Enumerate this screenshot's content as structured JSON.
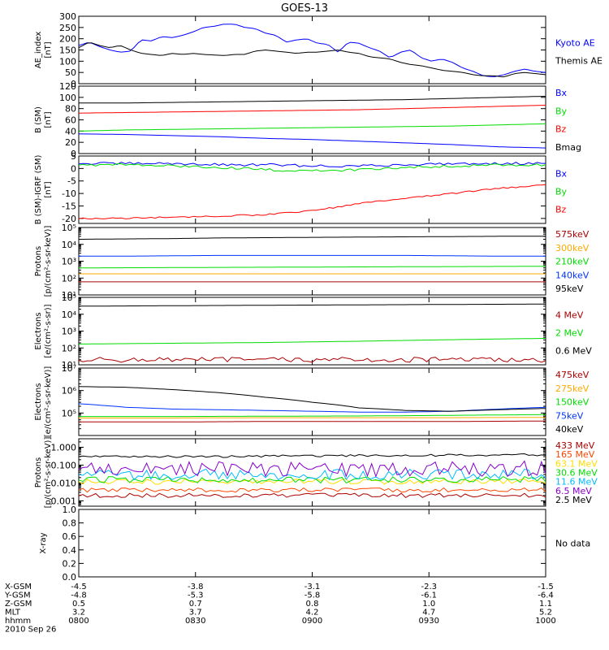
{
  "title": "GOES-13",
  "colors": {
    "black": "#000000",
    "blue": "#0000ff",
    "red": "#ff0000",
    "green": "#00dd00",
    "darkred": "#aa0000",
    "orange": "#ffaa00",
    "medblue": "#0033ff",
    "gold": "#ffdd00",
    "cyan": "#00bbff",
    "purple": "#8800cc",
    "orangered": "#ff4400"
  },
  "chart_data": [
    {
      "type": "line",
      "id": "ae",
      "ylabel": "AE_index\n[nT]",
      "ylim": [
        0,
        300
      ],
      "yscale": "linear",
      "yticks": [
        0,
        50,
        100,
        150,
        200,
        250,
        300
      ],
      "ytick_labels": [
        "0",
        "50",
        "100",
        "150",
        "200",
        "250",
        "300"
      ],
      "series": [
        {
          "name": "Kyoto AE",
          "color": "blue",
          "values": [
            170,
            185,
            165,
            150,
            140,
            145,
            195,
            190,
            210,
            205,
            215,
            230,
            250,
            255,
            265,
            265,
            250,
            245,
            225,
            215,
            185,
            195,
            200,
            180,
            175,
            140,
            185,
            180,
            160,
            145,
            115,
            140,
            150,
            115,
            100,
            110,
            95,
            70,
            55,
            35,
            30,
            40,
            55,
            65,
            55,
            50
          ],
          "noise": 0
        },
        {
          "name": "Themis AE",
          "color": "black",
          "values": [
            160,
            185,
            170,
            160,
            170,
            150,
            135,
            130,
            125,
            135,
            130,
            135,
            130,
            128,
            125,
            130,
            130,
            145,
            150,
            145,
            140,
            135,
            140,
            140,
            145,
            150,
            140,
            135,
            120,
            115,
            110,
            95,
            85,
            80,
            70,
            60,
            55,
            50,
            40,
            35,
            35,
            30,
            45,
            50,
            45,
            40
          ],
          "noise": 0
        }
      ]
    },
    {
      "type": "line",
      "id": "bsm",
      "ylabel": "B (SM)\n[nT]",
      "ylim": [
        0,
        120
      ],
      "yscale": "linear",
      "yticks": [
        0,
        20,
        40,
        60,
        80,
        100,
        120
      ],
      "ytick_labels": [
        "0",
        "20",
        "40",
        "60",
        "80",
        "100",
        "120"
      ],
      "series": [
        {
          "name": "Bx",
          "color": "blue",
          "values": [
            35,
            34,
            32,
            30,
            27,
            25,
            22,
            19,
            16,
            12,
            10
          ],
          "noise": 0
        },
        {
          "name": "By",
          "color": "green",
          "values": [
            40,
            42,
            43,
            44,
            45,
            46,
            47,
            48,
            49,
            51,
            53
          ],
          "noise": 0
        },
        {
          "name": "Bz",
          "color": "red",
          "values": [
            72,
            73,
            74,
            75,
            76,
            77,
            78,
            80,
            82,
            84,
            86
          ],
          "noise": 0
        },
        {
          "name": "Bmag",
          "color": "black",
          "values": [
            90,
            90,
            91,
            92,
            93,
            94,
            95,
            96,
            98,
            100,
            102
          ],
          "noise": 0
        }
      ]
    },
    {
      "type": "line",
      "id": "bigrf",
      "ylabel": "B (SM)-IGRF (SM)\n[nT]",
      "ylim": [
        -22,
        5
      ],
      "yscale": "linear",
      "yticks": [
        -20,
        -15,
        -10,
        -5,
        0,
        5
      ],
      "ytick_labels": [
        "-20",
        "-15",
        "-10",
        "-5",
        "0",
        "5"
      ],
      "series": [
        {
          "name": "Bx",
          "color": "blue",
          "values": [
            2,
            2,
            2,
            1.5,
            1.5,
            1,
            1,
            1.5,
            2,
            2,
            2
          ],
          "noise": 0.5
        },
        {
          "name": "By",
          "color": "green",
          "values": [
            1.5,
            1.5,
            1,
            0.5,
            -0.5,
            -1,
            -0.5,
            0.5,
            1,
            1.5,
            1.5
          ],
          "noise": 0.5
        },
        {
          "name": "Bz",
          "color": "red",
          "values": [
            -20,
            -20,
            -19.5,
            -19,
            -18.5,
            -17,
            -14,
            -12,
            -10,
            -8,
            -6.5
          ],
          "noise": 0.3
        }
      ]
    },
    {
      "type": "line",
      "id": "protons",
      "ylabel": "Protons\n[p/(cm²-s-sr-keV)]",
      "ylim": [
        10,
        100000
      ],
      "yscale": "log",
      "yticks": [
        10,
        100,
        1000,
        10000,
        100000
      ],
      "ytick_labels": [
        "10¹",
        "10²",
        "10³",
        "10⁴",
        "10⁵"
      ],
      "series": [
        {
          "name": "575keV",
          "color": "darkred",
          "values": [
            60,
            60,
            60,
            60,
            60,
            60,
            60,
            60,
            60,
            60,
            60
          ],
          "noise": 0
        },
        {
          "name": "300keV",
          "color": "orange",
          "values": [
            180,
            180,
            180,
            180,
            180,
            180,
            180,
            180,
            180,
            180,
            180
          ],
          "noise": 0
        },
        {
          "name": "210keV",
          "color": "green",
          "values": [
            400,
            410,
            420,
            430,
            440,
            450,
            460,
            470,
            480,
            490,
            500
          ],
          "noise": 0
        },
        {
          "name": "140keV",
          "color": "medblue",
          "values": [
            2000,
            2000,
            2100,
            2200,
            2200,
            2200,
            2200,
            2200,
            2100,
            2000,
            2000
          ],
          "noise": 0
        },
        {
          "name": "95keV",
          "color": "black",
          "values": [
            20000,
            21000,
            22000,
            24000,
            25000,
            26000,
            27000,
            28000,
            29000,
            30000,
            30000
          ],
          "noise": 0
        }
      ]
    },
    {
      "type": "line",
      "id": "electrons_mev",
      "ylabel": "Electrons\n[e/(cm²-s-sr)]",
      "ylim": [
        10,
        100000
      ],
      "yscale": "log",
      "yticks": [
        10,
        100,
        1000,
        10000,
        100000
      ],
      "ytick_labels": [
        "10¹",
        "10²",
        "10³",
        "10⁴",
        "10⁵"
      ],
      "series": [
        {
          "name": "4 MeV",
          "color": "darkred",
          "values": [
            20,
            20,
            20,
            20,
            20,
            20,
            20,
            20,
            20,
            20,
            20
          ],
          "noise": 0.15
        },
        {
          "name": "2 MeV",
          "color": "green",
          "values": [
            170,
            180,
            190,
            200,
            210,
            230,
            250,
            280,
            310,
            340,
            370
          ],
          "noise": 0
        },
        {
          "name": "0.6 MeV",
          "color": "black",
          "values": [
            30000,
            31000,
            32000,
            33000,
            34000,
            35000,
            36000,
            37000,
            38000,
            39000,
            40000
          ],
          "noise": 0
        }
      ]
    },
    {
      "type": "line",
      "id": "electrons_kev",
      "ylabel": "Electrons\n[e/(cm²-s-sr-keV)]",
      "ylim": [
        10000,
        10000000
      ],
      "yscale": "log",
      "yticks": [
        100000,
        1000000,
        10000000
      ],
      "ytick_labels": [
        "10⁵",
        "10⁶",
        "10⁷"
      ],
      "series": [
        {
          "name": "475keV",
          "color": "darkred",
          "values": [
            40000,
            40000,
            40000,
            41000,
            42000,
            42000,
            42000,
            42000,
            42000,
            43000,
            44000
          ],
          "noise": 0
        },
        {
          "name": "275keV",
          "color": "orange",
          "values": [
            60000,
            60000,
            60000,
            61000,
            62000,
            62000,
            62000,
            62000,
            62000,
            63000,
            64000
          ],
          "noise": 0
        },
        {
          "name": "150keV",
          "color": "green",
          "values": [
            70000,
            70000,
            70000,
            71000,
            72000,
            73000,
            74000,
            76000,
            79000,
            82000,
            85000
          ],
          "noise": 0
        },
        {
          "name": "75keV",
          "color": "medblue",
          "values": [
            260000,
            180000,
            150000,
            140000,
            130000,
            120000,
            110000,
            110000,
            120000,
            150000,
            180000
          ],
          "noise": 0
        },
        {
          "name": "40keV",
          "color": "black",
          "values": [
            1500000,
            1400000,
            1100000,
            800000,
            500000,
            300000,
            170000,
            130000,
            120000,
            140000,
            160000
          ],
          "noise": 0
        }
      ]
    },
    {
      "type": "line",
      "id": "protons_mev",
      "ylabel": "Protons\n[p/(cm²-s-sr-keV)]",
      "ylim": [
        0.0005,
        3
      ],
      "yscale": "log",
      "yticks": [
        0.001,
        0.01,
        0.1,
        1
      ],
      "ytick_labels": [
        "0.001",
        "0.010",
        "0.100",
        "1.000"
      ],
      "series": [
        {
          "name": "433 MeV",
          "color": "darkred",
          "values": [
            0.002,
            0.002,
            0.002,
            0.002,
            0.002,
            0.002,
            0.002,
            0.002,
            0.002,
            0.002,
            0.002
          ],
          "noise": 0.12
        },
        {
          "name": "165 MeV",
          "color": "orangered",
          "values": [
            0.004,
            0.004,
            0.004,
            0.004,
            0.004,
            0.004,
            0.004,
            0.004,
            0.004,
            0.004,
            0.004
          ],
          "noise": 0.12
        },
        {
          "name": "63.1 MeV",
          "color": "gold",
          "values": [
            0.012,
            0.012,
            0.012,
            0.012,
            0.012,
            0.012,
            0.012,
            0.012,
            0.012,
            0.012,
            0.012
          ],
          "noise": 0.15
        },
        {
          "name": "30.6 MeV",
          "color": "green",
          "values": [
            0.015,
            0.015,
            0.015,
            0.015,
            0.015,
            0.015,
            0.015,
            0.015,
            0.015,
            0.015,
            0.015
          ],
          "noise": 0.18
        },
        {
          "name": "11.6 MeV",
          "color": "cyan",
          "values": [
            0.03,
            0.03,
            0.03,
            0.03,
            0.03,
            0.03,
            0.03,
            0.03,
            0.03,
            0.03,
            0.03
          ],
          "noise": 0.3
        },
        {
          "name": "6.5 MeV",
          "color": "purple",
          "values": [
            0.06,
            0.06,
            0.06,
            0.06,
            0.06,
            0.06,
            0.06,
            0.06,
            0.06,
            0.06,
            0.06
          ],
          "noise": 0.45
        },
        {
          "name": "2.5 MeV",
          "color": "black",
          "values": [
            0.3,
            0.3,
            0.3,
            0.3,
            0.32,
            0.33,
            0.34,
            0.35,
            0.36,
            0.37,
            0.38
          ],
          "noise": 0.06
        }
      ]
    },
    {
      "type": "line",
      "id": "xray",
      "ylabel": "X-ray",
      "ylim": [
        0,
        1
      ],
      "yscale": "linear",
      "yticks": [
        0,
        0.2,
        0.4,
        0.6,
        0.8,
        1.0
      ],
      "ytick_labels": [
        "0.0",
        "0.2",
        "0.4",
        "0.6",
        "0.8",
        "1.0"
      ],
      "series": [],
      "note": "No data"
    }
  ],
  "x_axis": {
    "ticks": [
      "0800",
      "0830",
      "0900",
      "0930",
      "1000"
    ],
    "rows": [
      {
        "label": "X-GSM",
        "values": [
          "-4.5",
          "-3.8",
          "-3.1",
          "-2.3",
          "-1.5"
        ]
      },
      {
        "label": "Y-GSM",
        "values": [
          "-4.8",
          "-5.3",
          "-5.8",
          "-6.1",
          "-6.4"
        ]
      },
      {
        "label": "Z-GSM",
        "values": [
          "0.5",
          "0.7",
          "0.8",
          "1.0",
          "1.1"
        ]
      },
      {
        "label": "MLT",
        "values": [
          "3.2",
          "3.7",
          "4.2",
          "4.7",
          "5.2"
        ]
      },
      {
        "label": "hhmm",
        "values": [
          "0800",
          "0830",
          "0900",
          "0930",
          "1000"
        ]
      }
    ],
    "date": "2010 Sep 26"
  }
}
